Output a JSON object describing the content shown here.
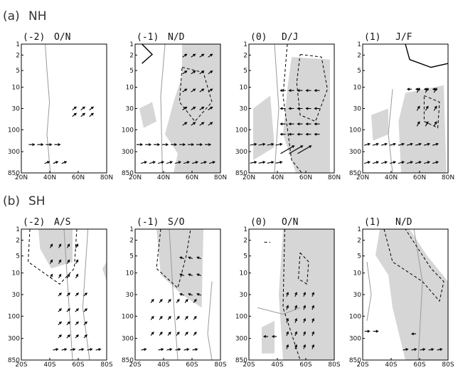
{
  "sections": [
    {
      "id": "nh",
      "label": "(a)",
      "name": "NH",
      "x_ticks": [
        "20N",
        "40N",
        "60N",
        "80N"
      ],
      "panels": [
        {
          "lag": "(-2)",
          "months": "O/N"
        },
        {
          "lag": "(-1)",
          "months": "N/D"
        },
        {
          "lag": "(0)",
          "months": "D/J"
        },
        {
          "lag": "(1)",
          "months": "J/F"
        }
      ]
    },
    {
      "id": "sh",
      "label": "(b)",
      "name": "SH",
      "x_ticks": [
        "20S",
        "40S",
        "60S",
        "80S"
      ],
      "panels": [
        {
          "lag": "(-2)",
          "months": "A/S"
        },
        {
          "lag": "(-1)",
          "months": "S/O"
        },
        {
          "lag": "(0)",
          "months": "O/N"
        },
        {
          "lag": "(1)",
          "months": "N/D"
        }
      ]
    }
  ],
  "y_ticks": [
    "1",
    "2",
    "5",
    "10",
    "30",
    "100",
    "300",
    "850"
  ]
}
